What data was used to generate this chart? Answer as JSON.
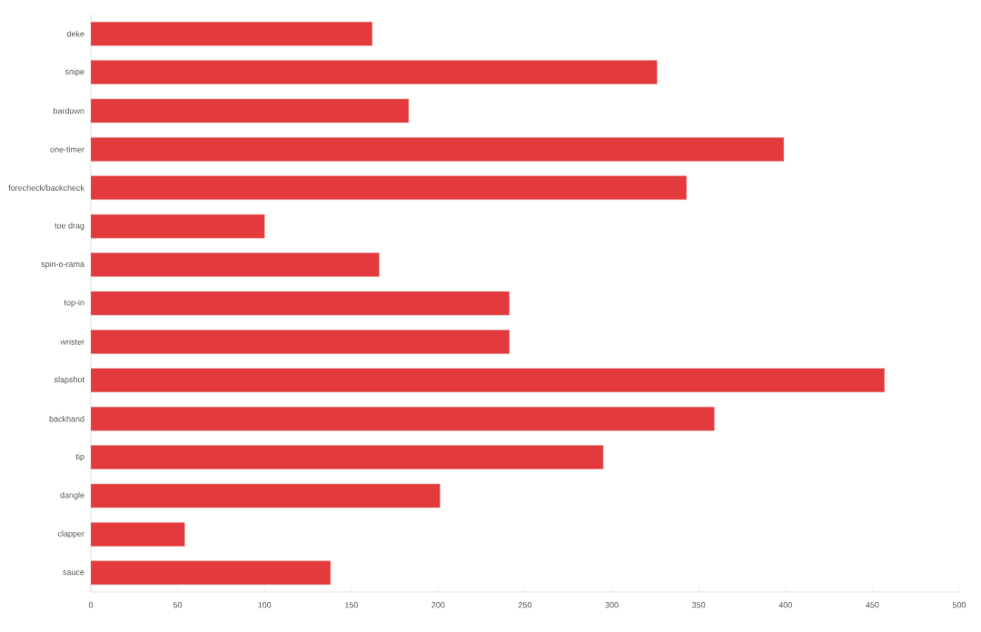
{
  "chart_data": {
    "type": "bar",
    "orientation": "horizontal",
    "categories": [
      "deke",
      "snipe",
      "bardown",
      "one-timer",
      "forecheck/backcheck",
      "toe drag",
      "spin-o-rama",
      "top-in",
      "wrister",
      "slapshot",
      "backhand",
      "tip",
      "dangle",
      "clapper",
      "sauce"
    ],
    "values": [
      162,
      326,
      183,
      399,
      343,
      100,
      166,
      241,
      241,
      457,
      359,
      295,
      201,
      54,
      138
    ],
    "color": "#e33b3d",
    "xlim": [
      0,
      500
    ],
    "xticks": [
      0,
      50,
      100,
      150,
      200,
      250,
      300,
      350,
      400,
      450,
      500
    ]
  }
}
